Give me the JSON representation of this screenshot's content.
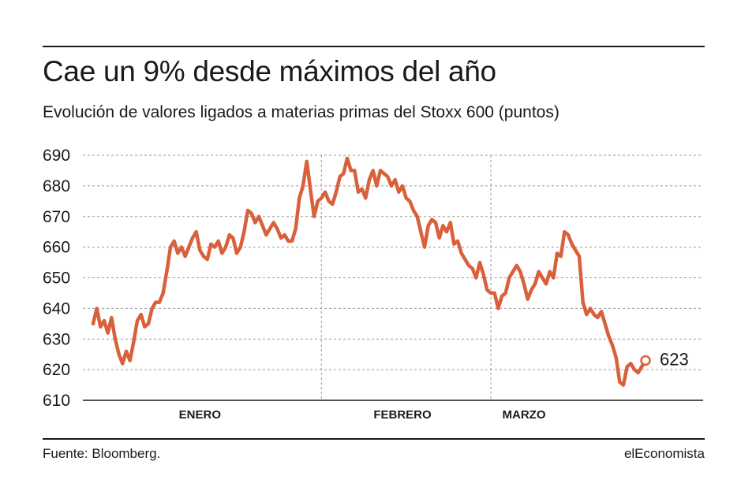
{
  "header": {
    "title": "Cae un 9% desde máximos del año",
    "subtitle": "Evolución de valores ligados a materias primas del Stoxx 600 (puntos)"
  },
  "footer": {
    "source": "Fuente: Bloomberg.",
    "brand": "elEconomista"
  },
  "colors": {
    "line": "#d9603b",
    "grid": "#9a9a9a",
    "text": "#1a1a1a"
  },
  "chart_data": {
    "type": "line",
    "title": "Cae un 9% desde máximos del año",
    "subtitle": "Evolución de valores ligados a materias primas del Stoxx 600 (puntos)",
    "xlabel": "",
    "ylabel": "",
    "ylim": [
      610,
      690
    ],
    "yticks": [
      690,
      680,
      670,
      660,
      650,
      640,
      630,
      620,
      610
    ],
    "grid": true,
    "month_labels": [
      {
        "label": "ENERO",
        "center_index": 29
      },
      {
        "label": "FEBRERO",
        "center_index": 84
      },
      {
        "label": "MARZO",
        "center_index": 117
      }
    ],
    "month_separators": [
      62,
      108
    ],
    "end_label": "623",
    "series": [
      {
        "values": [
          635,
          640,
          634,
          636,
          632,
          637,
          630,
          625,
          622,
          626,
          623,
          629,
          636,
          638,
          634,
          635,
          640,
          642,
          642,
          645,
          652,
          660,
          662,
          658,
          660,
          657,
          660,
          663,
          665,
          659,
          657,
          656,
          661,
          660,
          662,
          658,
          660,
          664,
          663,
          658,
          660,
          665,
          672,
          671,
          668,
          670,
          667,
          664,
          666,
          668,
          666,
          663,
          664,
          662,
          662,
          666,
          676,
          680,
          688,
          679,
          670,
          675,
          676,
          678,
          675,
          674,
          678,
          683,
          684,
          689,
          685,
          685,
          678,
          679,
          676,
          682,
          685,
          680,
          685,
          684,
          683,
          680,
          682,
          678,
          680,
          676,
          675,
          672,
          670,
          665,
          660,
          667,
          669,
          668,
          663,
          667,
          665,
          668,
          661,
          662,
          658,
          656,
          654,
          653,
          650,
          655,
          651,
          646,
          645,
          645,
          640,
          644,
          645,
          650,
          652,
          654,
          652,
          648,
          643,
          646,
          648,
          652,
          650,
          648,
          652,
          650,
          658,
          657,
          665,
          664,
          661,
          659,
          657,
          642,
          638,
          640,
          638,
          637,
          639,
          635,
          631,
          628,
          624,
          616,
          615,
          621,
          622,
          620,
          619,
          621,
          623
        ]
      }
    ]
  }
}
